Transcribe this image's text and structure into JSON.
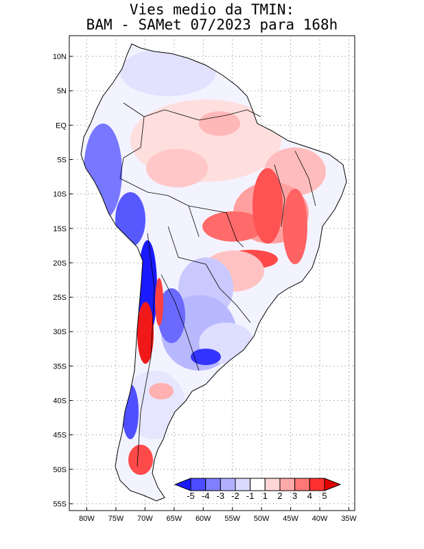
{
  "title": {
    "line1": "Vies medio da TMIN:",
    "line2": "BAM - SAMet 07/2023  para 168h"
  },
  "axes": {
    "y_labels": [
      "10N",
      "5N",
      "EQ",
      "5S",
      "10S",
      "15S",
      "20S",
      "25S",
      "30S",
      "35S",
      "40S",
      "45S",
      "50S",
      "55S"
    ],
    "y_values": [
      10,
      5,
      0,
      -5,
      -10,
      -15,
      -20,
      -25,
      -30,
      -35,
      -40,
      -45,
      -50,
      -55
    ],
    "x_labels": [
      "80W",
      "75W",
      "70W",
      "65W",
      "60W",
      "55W",
      "50W",
      "45W",
      "40W",
      "35W"
    ],
    "x_values": [
      -80,
      -75,
      -70,
      -65,
      -60,
      -55,
      -50,
      -45,
      -40,
      -35
    ],
    "lon_range": [
      -83,
      -34
    ],
    "lat_range": [
      13,
      -56
    ]
  },
  "colorbar": {
    "labels": [
      "-5",
      "-4",
      "-3",
      "-2",
      "-1",
      "1",
      "2",
      "3",
      "4",
      "5"
    ],
    "colors": [
      "#1a1aff",
      "#4d4dff",
      "#7f7fff",
      "#b0b0ff",
      "#dadaff",
      "#ffffff",
      "#ffd6d6",
      "#ffa9a9",
      "#ff7878",
      "#ff3030",
      "#e00000"
    ]
  },
  "map_colors": {
    "land_base": "#f3f3ff",
    "light_blue": "#dcdcff",
    "mid_blue": "#a9a9ff",
    "strong_blue": "#4848ff",
    "deep_blue": "#1010ee",
    "light_red": "#ffdede",
    "mid_red": "#ffa8a8",
    "strong_red": "#ff5050",
    "deep_red": "#f01010"
  }
}
